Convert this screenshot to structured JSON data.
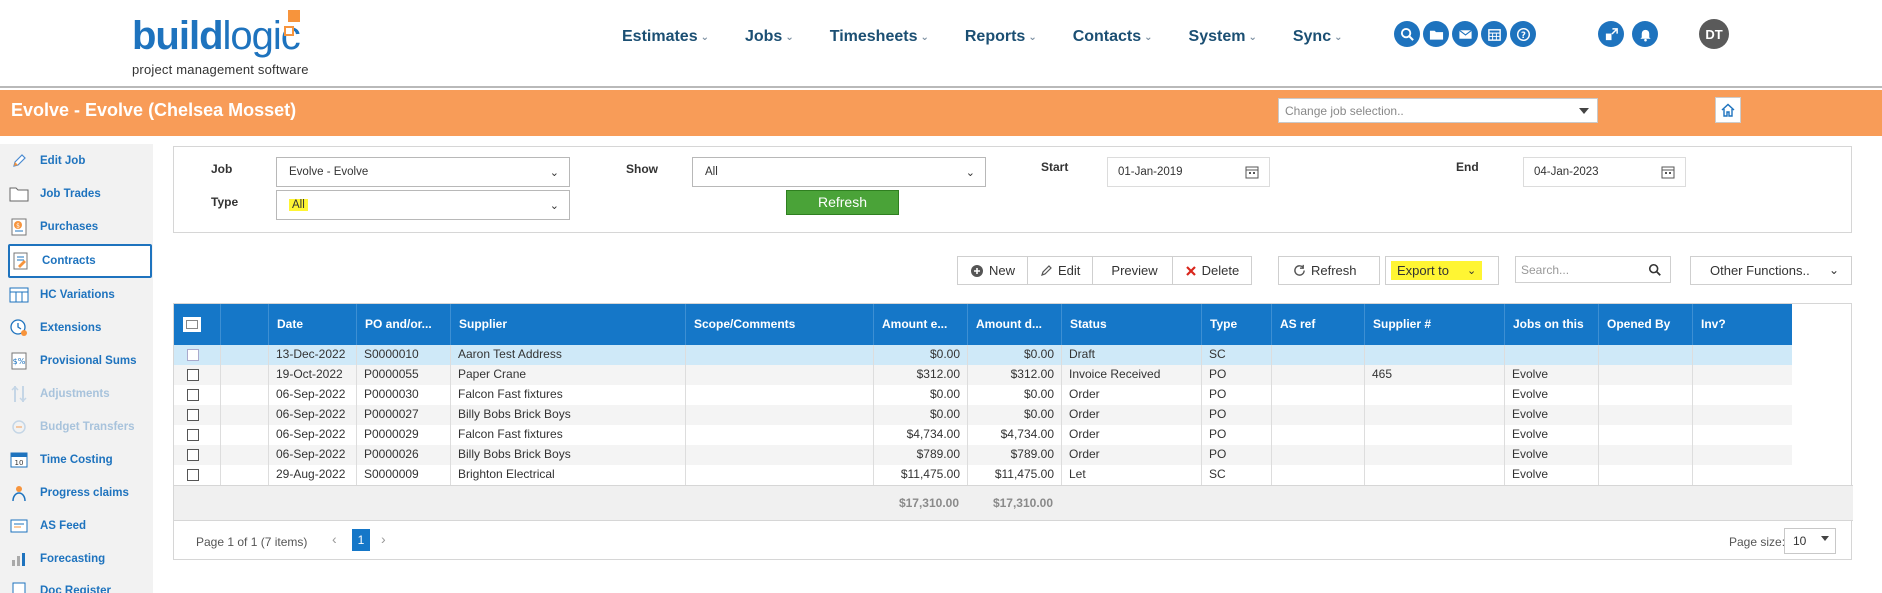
{
  "brand": {
    "word_bold": "build",
    "word_light": "logic",
    "tagline": "project management software"
  },
  "nav": [
    "Estimates",
    "Jobs",
    "Timesheets",
    "Reports",
    "Contacts",
    "System",
    "Sync"
  ],
  "user": {
    "initials": "DT"
  },
  "job": {
    "title": "Evolve - Evolve (Chelsea Mosset)",
    "change_placeholder": "Change job selection.."
  },
  "sidebar": [
    {
      "label": "Edit Job",
      "icon": "pencil-icon"
    },
    {
      "label": "Job Trades",
      "icon": "folder-icon"
    },
    {
      "label": "Purchases",
      "icon": "purchases-icon"
    },
    {
      "label": "Contracts",
      "icon": "contract-icon"
    },
    {
      "label": "HC Variations",
      "icon": "variations-icon"
    },
    {
      "label": "Extensions",
      "icon": "clock-icon"
    },
    {
      "label": "Provisional Sums",
      "icon": "sums-icon"
    },
    {
      "label": "Adjustments",
      "icon": "adjustments-icon"
    },
    {
      "label": "Budget Transfers",
      "icon": "transfer-icon"
    },
    {
      "label": "Time Costing",
      "icon": "calendar-icon"
    },
    {
      "label": "Progress claims",
      "icon": "progress-icon"
    },
    {
      "label": "AS Feed",
      "icon": "feed-icon"
    },
    {
      "label": "Forecasting",
      "icon": "chart-icon"
    },
    {
      "label": "Doc Register",
      "icon": "document-icon"
    }
  ],
  "filters": {
    "job_label": "Job",
    "job_value": "Evolve - Evolve",
    "type_label": "Type",
    "type_value": "All",
    "show_label": "Show",
    "show_value": "All",
    "refresh": "Refresh",
    "start_label": "Start",
    "start_value": "01-Jan-2019",
    "end_label": "End",
    "end_value": "04-Jan-2023"
  },
  "toolbar": {
    "new": "New",
    "edit": "Edit",
    "preview": "Preview",
    "delete": "Delete",
    "refresh": "Refresh",
    "export": "Export to",
    "search_placeholder": "Search...",
    "other": "Other Functions.."
  },
  "grid": {
    "columns": [
      "Date",
      "PO and/or...",
      "Supplier",
      "Scope/Comments",
      "Amount e...",
      "Amount d...",
      "Status",
      "Type",
      "AS ref",
      "Supplier #",
      "Jobs on this",
      "Opened By",
      "Inv?"
    ],
    "rows": [
      [
        "13-Dec-2022",
        "S0000010",
        "Aaron Test Address",
        "",
        "$0.00",
        "$0.00",
        "Draft",
        "SC",
        "",
        "",
        "",
        "",
        ""
      ],
      [
        "19-Oct-2022",
        "P0000055",
        "Paper Crane",
        "",
        "$312.00",
        "$312.00",
        "Invoice Received",
        "PO",
        "",
        "465",
        "Evolve",
        "",
        ""
      ],
      [
        "06-Sep-2022",
        "P0000030",
        "Falcon Fast fixtures",
        "",
        "$0.00",
        "$0.00",
        "Order",
        "PO",
        "",
        "",
        "Evolve",
        "",
        ""
      ],
      [
        "06-Sep-2022",
        "P0000027",
        "Billy Bobs Brick Boys",
        "",
        "$0.00",
        "$0.00",
        "Order",
        "PO",
        "",
        "",
        "Evolve",
        "",
        ""
      ],
      [
        "06-Sep-2022",
        "P0000029",
        "Falcon Fast fixtures",
        "",
        "$4,734.00",
        "$4,734.00",
        "Order",
        "PO",
        "",
        "",
        "Evolve",
        "",
        ""
      ],
      [
        "06-Sep-2022",
        "P0000026",
        "Billy Bobs Brick Boys",
        "",
        "$789.00",
        "$789.00",
        "Order",
        "PO",
        "",
        "",
        "Evolve",
        "",
        ""
      ],
      [
        "29-Aug-2022",
        "S0000009",
        "Brighton Electrical",
        "",
        "$11,475.00",
        "$11,475.00",
        "Let",
        "SC",
        "",
        "",
        "Evolve",
        "",
        ""
      ]
    ],
    "totals": {
      "amount_ex": "$17,310.00",
      "amount_d": "$17,310.00"
    },
    "paging": {
      "summary": "Page 1 of 1 (7 items)",
      "current": "1",
      "size_label": "Page size:",
      "size": "10"
    }
  },
  "colors": {
    "brand_blue": "#1e73be",
    "orange": "#f89c58",
    "header_blue": "#1577c8",
    "highlight": "#fff533",
    "green": "#4aa338"
  }
}
